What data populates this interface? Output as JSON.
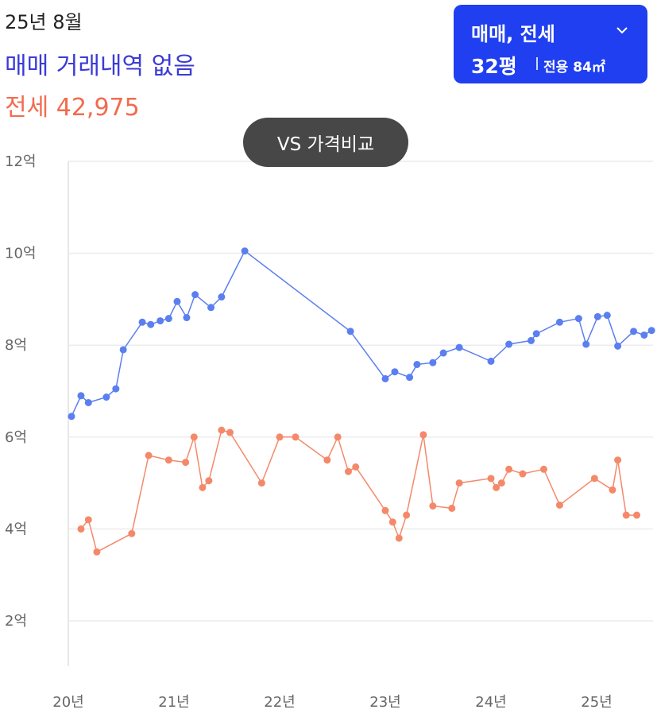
{
  "header": {
    "month": "25년 8월",
    "sale_status": "매매 거래내역 없음",
    "jeonse_label": "전세 42,975"
  },
  "selector": {
    "type": "매매, 전세",
    "size": "32평",
    "area": "전용 84㎡",
    "chevron_icon": "chevron-down-icon"
  },
  "compare_button": {
    "label": "VS 가격비교"
  },
  "colors": {
    "sale": "#5b7ff0",
    "jeonse": "#f4896a",
    "accent": "#1f3ff0"
  },
  "chart_data": {
    "type": "line",
    "y_ticks": [
      "12억",
      "10억",
      "8억",
      "6억",
      "4억",
      "2억"
    ],
    "y_tick_values": [
      12,
      10,
      8,
      6,
      4,
      2
    ],
    "x_ticks": [
      "20년",
      "21년",
      "22년",
      "23년",
      "24년",
      "25년"
    ],
    "x_tick_values": [
      2020,
      2021,
      2022,
      2023,
      2024,
      2025
    ],
    "xlim": [
      2020,
      2025.6
    ],
    "ylim": [
      1,
      12
    ],
    "grid": true,
    "series": [
      {
        "key": "sale",
        "x": [
          2020.03,
          2020.12,
          2020.19,
          2020.36,
          2020.45,
          2020.52,
          2020.7,
          2020.78,
          2020.87,
          2020.95,
          2021.03,
          2021.12,
          2021.2,
          2021.35,
          2021.45,
          2021.67,
          2022.67,
          2023.0,
          2023.09,
          2023.23,
          2023.3,
          2023.45,
          2023.55,
          2023.7,
          2024.0,
          2024.17,
          2024.38,
          2024.43,
          2024.65,
          2024.83,
          2024.9,
          2025.01,
          2025.1,
          2025.2,
          2025.35,
          2025.45,
          2025.52
        ],
        "values": [
          6.45,
          6.9,
          6.75,
          6.87,
          7.05,
          7.9,
          8.5,
          8.45,
          8.53,
          8.58,
          8.95,
          8.6,
          9.1,
          8.82,
          9.05,
          10.05,
          8.3,
          7.27,
          7.42,
          7.3,
          7.58,
          7.62,
          7.83,
          7.95,
          7.65,
          8.02,
          8.1,
          8.25,
          8.5,
          8.58,
          8.02,
          8.62,
          8.65,
          7.98,
          8.3,
          8.22,
          8.32
        ]
      },
      {
        "key": "jeonse",
        "x": [
          2020.12,
          2020.19,
          2020.27,
          2020.6,
          2020.76,
          2020.95,
          2021.11,
          2021.19,
          2021.27,
          2021.33,
          2021.45,
          2021.53,
          2021.83,
          2022.0,
          2022.15,
          2022.45,
          2022.55,
          2022.65,
          2022.72,
          2023.0,
          2023.07,
          2023.13,
          2023.2,
          2023.36,
          2023.45,
          2023.63,
          2023.7,
          2024.0,
          2024.05,
          2024.1,
          2024.17,
          2024.3,
          2024.5,
          2024.65,
          2024.98,
          2025.15,
          2025.2,
          2025.28,
          2025.38
        ],
        "values": [
          4.0,
          4.2,
          3.5,
          3.9,
          5.6,
          5.5,
          5.45,
          6.0,
          4.9,
          5.05,
          6.15,
          6.1,
          5.0,
          6.0,
          6.0,
          5.5,
          6.0,
          5.25,
          5.35,
          4.4,
          4.15,
          3.8,
          4.3,
          6.05,
          4.5,
          4.45,
          5.0,
          5.1,
          4.9,
          5.0,
          5.3,
          5.2,
          5.3,
          4.52,
          5.1,
          4.85,
          5.5,
          4.3,
          4.3
        ]
      }
    ]
  }
}
